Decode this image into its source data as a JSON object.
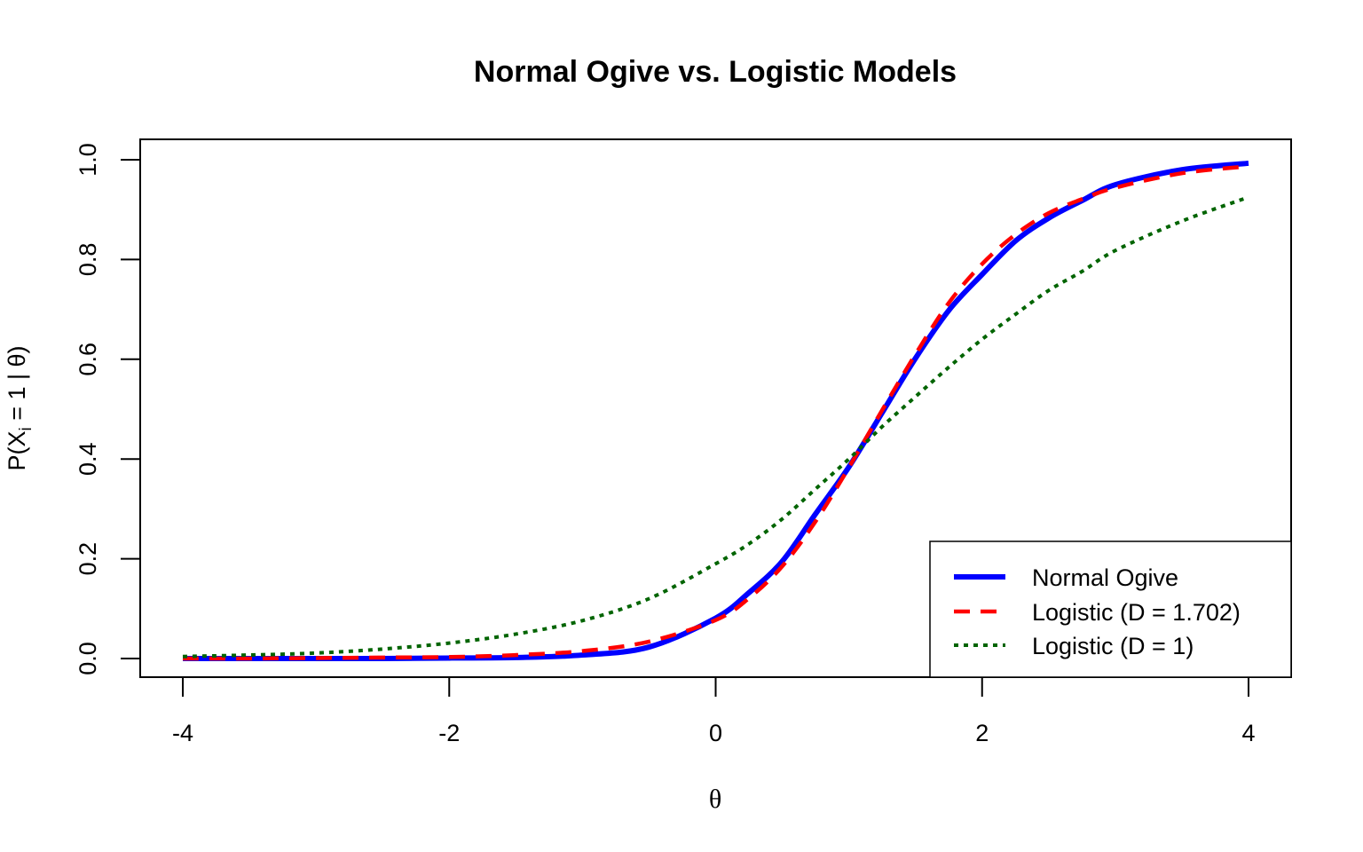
{
  "chart_data": {
    "type": "line",
    "title": "Normal Ogive vs. Logistic Models",
    "xlabel": "θ",
    "ylabel": {
      "prefix": "P(X",
      "subscript": "i",
      "suffix": " = 1 | θ)"
    },
    "xlim": [
      -4,
      4
    ],
    "ylim": [
      0,
      1
    ],
    "x_ticks": [
      -4,
      -2,
      0,
      2,
      4
    ],
    "x_tick_labels": [
      "-4",
      "-2",
      "0",
      "2",
      "4"
    ],
    "y_ticks": [
      0,
      0.2,
      0.4,
      0.6,
      0.8,
      1.0
    ],
    "y_tick_labels": [
      "0.0",
      "0.2",
      "0.4",
      "0.6",
      "0.8",
      "1.0"
    ],
    "grid": false,
    "legend_position": "bottom-right",
    "x": [
      -4,
      -3.5,
      -3,
      -2.5,
      -2,
      -1.5,
      -1,
      -0.5,
      0,
      0.25,
      0.5,
      0.75,
      1,
      1.25,
      1.5,
      1.75,
      2,
      2.25,
      2.5,
      2.75,
      3,
      3.5,
      4
    ],
    "series": [
      {
        "name": "Normal Ogive",
        "color": "#0000ff",
        "style": "solid",
        "values": [
          0.0,
          0.0,
          0.0,
          0.0,
          0.001,
          0.002,
          0.007,
          0.023,
          0.081,
          0.132,
          0.195,
          0.29,
          0.384,
          0.493,
          0.602,
          0.698,
          0.77,
          0.837,
          0.883,
          0.918,
          0.95,
          0.98,
          0.993
        ]
      },
      {
        "name": "Logistic (D = 1.702)",
        "color": "#ff0000",
        "style": "dashed",
        "values": [
          0.0,
          0.0,
          0.001,
          0.002,
          0.003,
          0.007,
          0.015,
          0.034,
          0.077,
          0.121,
          0.185,
          0.275,
          0.383,
          0.498,
          0.61,
          0.713,
          0.791,
          0.85,
          0.893,
          0.921,
          0.944,
          0.973,
          0.987
        ]
      },
      {
        "name": "Logistic (D = 1)",
        "color": "#006400",
        "style": "dotted",
        "values": [
          0.004,
          0.007,
          0.011,
          0.019,
          0.031,
          0.049,
          0.076,
          0.12,
          0.19,
          0.23,
          0.28,
          0.34,
          0.4,
          0.465,
          0.525,
          0.584,
          0.64,
          0.69,
          0.738,
          0.776,
          0.818,
          0.877,
          0.925
        ]
      }
    ]
  }
}
